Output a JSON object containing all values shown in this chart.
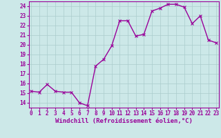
{
  "x": [
    0,
    1,
    2,
    3,
    4,
    5,
    6,
    7,
    8,
    9,
    10,
    11,
    12,
    13,
    14,
    15,
    16,
    17,
    18,
    19,
    20,
    21,
    22,
    23
  ],
  "y": [
    15.2,
    15.1,
    15.9,
    15.2,
    15.1,
    15.1,
    14.0,
    13.7,
    17.8,
    18.5,
    19.9,
    22.5,
    22.5,
    20.9,
    21.1,
    23.5,
    23.8,
    24.2,
    24.2,
    23.9,
    22.2,
    23.0,
    20.5,
    20.2
  ],
  "line_color": "#990099",
  "marker": "x",
  "marker_size": 3,
  "linewidth": 1.0,
  "markeredgewidth": 0.8,
  "xlabel": "Windchill (Refroidissement éolien,°C)",
  "xlabel_fontsize": 6.5,
  "ytick_labels": [
    "14",
    "15",
    "16",
    "17",
    "18",
    "19",
    "20",
    "21",
    "22",
    "23",
    "24"
  ],
  "ytick_values": [
    14,
    15,
    16,
    17,
    18,
    19,
    20,
    21,
    22,
    23,
    24
  ],
  "xtick_labels": [
    "0",
    "1",
    "2",
    "3",
    "4",
    "5",
    "6",
    "7",
    "8",
    "9",
    "10",
    "11",
    "12",
    "13",
    "14",
    "15",
    "16",
    "17",
    "18",
    "19",
    "20",
    "21",
    "22",
    "23"
  ],
  "xlim": [
    -0.3,
    23.3
  ],
  "ylim": [
    13.5,
    24.5
  ],
  "bg_color": "#cce8e8",
  "grid_color": "#aacccc",
  "tick_fontsize": 5.5,
  "ylabel_fontsize": 5.5
}
